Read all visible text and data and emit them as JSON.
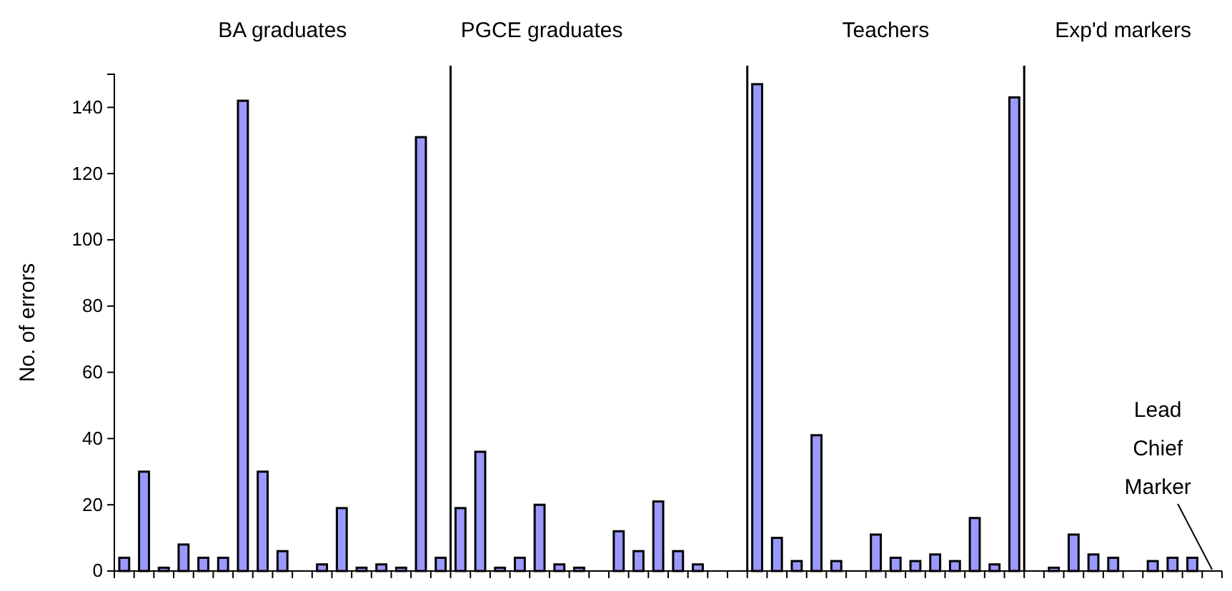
{
  "chart_data": {
    "type": "bar",
    "ylabel": "No. of errors",
    "categories": [
      null,
      null,
      null,
      null,
      null,
      null,
      null,
      null,
      null,
      null,
      null,
      null,
      null,
      null,
      null,
      null,
      null,
      null,
      null,
      null,
      null,
      null,
      null,
      null,
      null,
      null,
      null,
      null,
      null,
      null,
      null,
      null,
      null,
      null,
      null,
      null,
      null,
      null,
      null,
      null,
      null,
      null,
      null,
      null,
      null,
      null,
      null,
      null,
      null,
      null,
      null,
      null,
      null,
      null,
      null,
      null
    ],
    "values": [
      4,
      30,
      1,
      8,
      4,
      4,
      142,
      30,
      6,
      0,
      2,
      19,
      1,
      2,
      1,
      131,
      4,
      19,
      36,
      1,
      4,
      20,
      2,
      1,
      0,
      12,
      6,
      21,
      6,
      2,
      0,
      0,
      147,
      10,
      3,
      41,
      3,
      0,
      11,
      4,
      3,
      5,
      3,
      16,
      2,
      143,
      0,
      1,
      11,
      5,
      4,
      0,
      3,
      4,
      4,
      0
    ],
    "color": "#9999ff",
    "ylim": [
      0,
      150
    ],
    "yticks": [
      0,
      20,
      40,
      60,
      80,
      100,
      120,
      140
    ],
    "grid": false,
    "tick_labels": "y",
    "annotations": [
      "BA graduates",
      "PGCE graduates",
      "Teachers",
      "Exp'd markers",
      "Lead Chief Marker"
    ]
  }
}
